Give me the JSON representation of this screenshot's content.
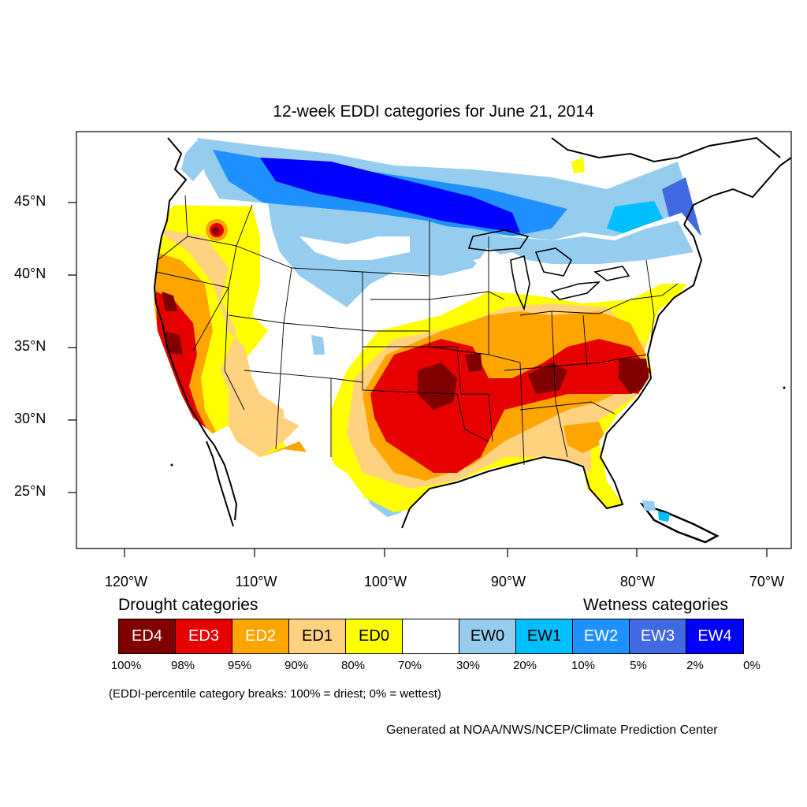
{
  "title": "12-week EDDI categories for June 21, 2014",
  "lat_labels": [
    "45°N",
    "40°N",
    "35°N",
    "30°N",
    "25°N"
  ],
  "lon_labels": [
    "120°W",
    "110°W",
    "100°W",
    "90°W",
    "80°W",
    "70°W"
  ],
  "legend": {
    "drought_heading": "Drought categories",
    "wetness_heading": "Wetness categories",
    "categories": [
      {
        "label": "ED4",
        "color": "#800000",
        "text_color": "#ffffff"
      },
      {
        "label": "ED3",
        "color": "#e60000",
        "text_color": "#ffffff"
      },
      {
        "label": "ED2",
        "color": "#ffa500",
        "text_color": "#ffffff"
      },
      {
        "label": "ED1",
        "color": "#ffd27f",
        "text_color": "#000000"
      },
      {
        "label": "ED0",
        "color": "#ffff00",
        "text_color": "#000000"
      },
      {
        "label": "",
        "color": "#ffffff",
        "text_color": "#000000"
      },
      {
        "label": "EW0",
        "color": "#96cdee",
        "text_color": "#000000"
      },
      {
        "label": "EW1",
        "color": "#00bfff",
        "text_color": "#000000"
      },
      {
        "label": "EW2",
        "color": "#1e90ff",
        "text_color": "#ffffff"
      },
      {
        "label": "EW3",
        "color": "#4169e1",
        "text_color": "#ffffff"
      },
      {
        "label": "EW4",
        "color": "#0000ff",
        "text_color": "#ffffff"
      }
    ],
    "breaks": [
      "100%",
      "98%",
      "95%",
      "90%",
      "80%",
      "70%",
      "30%",
      "20%",
      "10%",
      "5%",
      "2%",
      "0%"
    ]
  },
  "note": "(EDDI-percentile category breaks: 100% = driest; 0% = wettest)",
  "credit": "Generated at NOAA/NWS/NCEP/Climate Prediction Center"
}
